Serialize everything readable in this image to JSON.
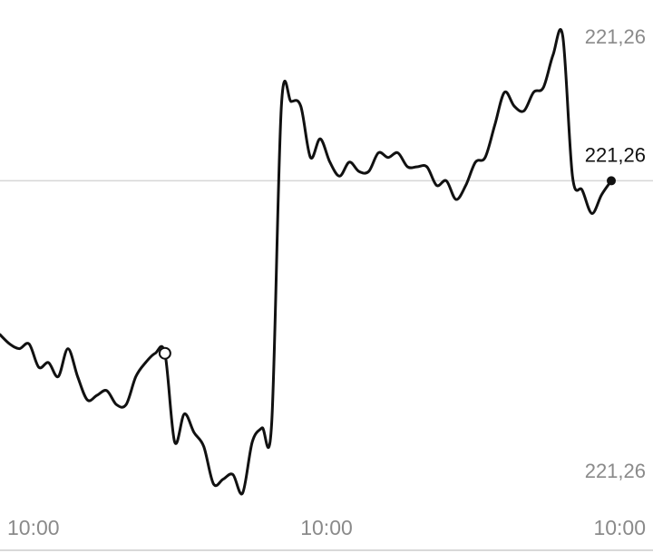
{
  "chart_data": {
    "type": "line",
    "y_tick_labels": [
      "221,26",
      "221,26"
    ],
    "current_value_label": "221,26",
    "x_tick_labels": [
      "10:00",
      "10:00",
      "10:00"
    ],
    "grid": false,
    "legend": "none",
    "colors": {
      "line": "#111111",
      "reference_line": "#d6d6d6",
      "axis": "#d9d9d9",
      "tick_text": "#8a8a8a",
      "value_text": "#111111"
    },
    "series": [
      {
        "values": [
          0.36,
          0.34,
          0.33,
          0.34,
          0.29,
          0.3,
          0.27,
          0.33,
          0.27,
          0.22,
          0.23,
          0.24,
          0.21,
          0.21,
          0.27,
          0.3,
          0.32,
          0.32,
          0.13,
          0.19,
          0.15,
          0.12,
          0.04,
          0.05,
          0.06,
          0.02,
          0.13,
          0.16,
          0.17,
          0.85,
          0.86,
          0.85,
          0.74,
          0.78,
          0.73,
          0.7,
          0.73,
          0.71,
          0.71,
          0.75,
          0.74,
          0.75,
          0.72,
          0.72,
          0.72,
          0.68,
          0.69,
          0.65,
          0.68,
          0.73,
          0.74,
          0.81,
          0.88,
          0.85,
          0.84,
          0.88,
          0.89,
          0.96,
          1.0,
          0.7,
          0.67,
          0.62,
          0.66,
          0.69
        ],
        "open_marker_index": 17,
        "last_point_marker": true
      }
    ]
  }
}
